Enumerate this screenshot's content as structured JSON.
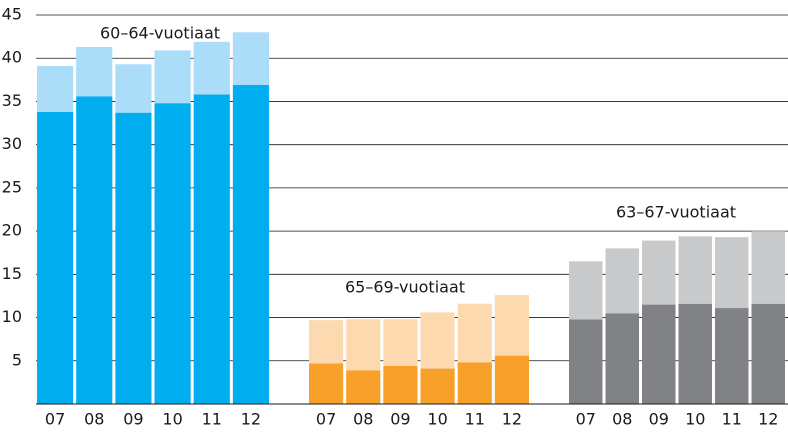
{
  "chart_data": {
    "type": "bar",
    "stacked": true,
    "grid": true,
    "ylim": [
      0,
      45
    ],
    "yticks": [
      5,
      10,
      15,
      20,
      25,
      30,
      35,
      40,
      45
    ],
    "groups": [
      {
        "label": "60–64-vuotiaat",
        "categories": [
          "07",
          "08",
          "09",
          "10",
          "11",
          "12"
        ],
        "series": [
          {
            "color": "#00aeef",
            "values": [
              33.8,
              35.6,
              33.7,
              34.8,
              35.8,
              36.9
            ]
          },
          {
            "color": "#abdcf8",
            "values": [
              5.3,
              5.7,
              5.6,
              6.1,
              6.1,
              6.1
            ]
          }
        ]
      },
      {
        "label": "65–69-vuotiaat",
        "categories": [
          "07",
          "08",
          "09",
          "10",
          "11",
          "12"
        ],
        "series": [
          {
            "color": "#f7a12a",
            "values": [
              4.7,
              3.9,
              4.4,
              4.1,
              4.8,
              5.6
            ]
          },
          {
            "color": "#fdd9b0",
            "values": [
              5.0,
              5.9,
              5.4,
              6.5,
              6.8,
              7.0
            ]
          }
        ]
      },
      {
        "label": "63–67-vuotiaat",
        "categories": [
          "07",
          "08",
          "09",
          "10",
          "11",
          "12"
        ],
        "series": [
          {
            "color": "#808285",
            "values": [
              9.8,
              10.5,
              11.5,
              11.6,
              11.1,
              11.6
            ]
          },
          {
            "color": "#c8c9cb",
            "values": [
              6.7,
              7.5,
              7.4,
              7.8,
              8.2,
              8.4
            ]
          }
        ]
      }
    ]
  }
}
